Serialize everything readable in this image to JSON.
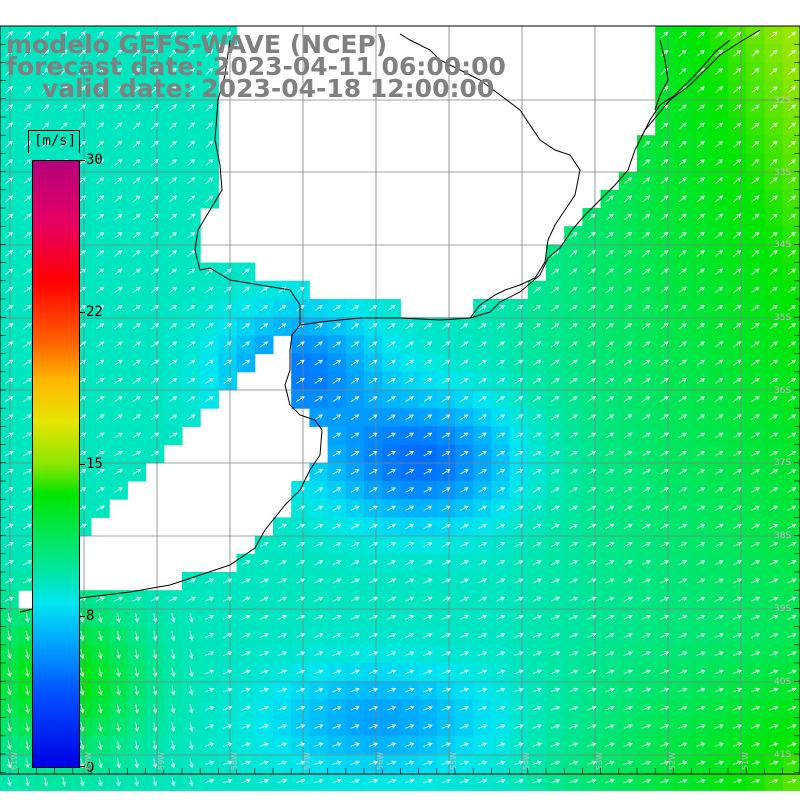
{
  "title": {
    "line1": "modelo GEFS-WAVE (NCEP)",
    "line2": "forecast date: 2023-04-11 06:00:00",
    "line3": "valid date: 2023-04-18 12:00:00"
  },
  "colorbar": {
    "unit": "[m/s]",
    "ticks": [
      "30",
      "22",
      "15",
      "8",
      "0"
    ],
    "min": 0,
    "max": 30
  },
  "axes": {
    "lat_labels": [
      "32S",
      "33S",
      "34S",
      "35S",
      "36S",
      "37S",
      "38S",
      "39S",
      "40S",
      "41S"
    ],
    "lon_labels": [
      "61W",
      "60W",
      "59W",
      "58W",
      "57W",
      "56W",
      "55W",
      "54W",
      "53W",
      "52W",
      "51W"
    ]
  },
  "colors": {
    "land": "#ffffff",
    "coast": "#000000",
    "grid": "#808080",
    "arrow": "#ffffff",
    "title_text": "#808080"
  }
}
